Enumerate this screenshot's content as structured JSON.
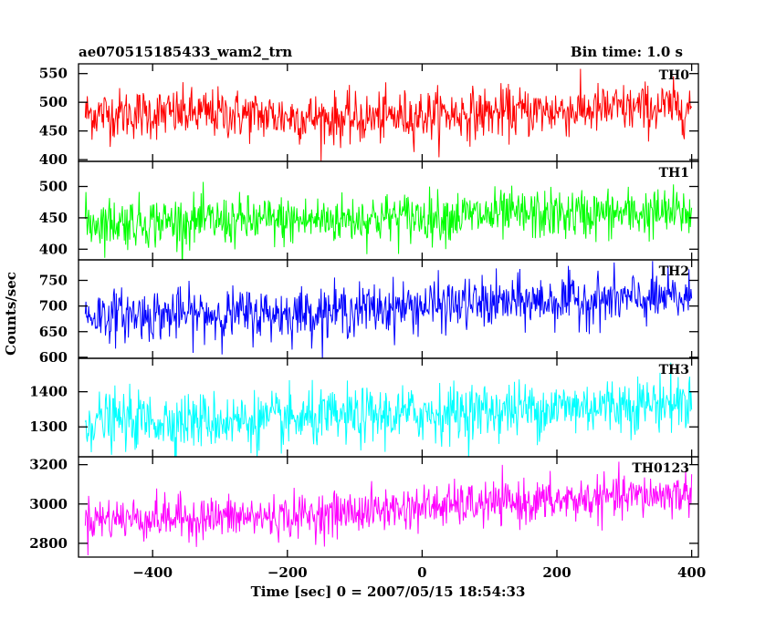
{
  "header": {
    "left": "ae070515185433_wam2_trn",
    "right": "Bin time: 1.0 s"
  },
  "chart_data": {
    "type": "line",
    "xlabel": "Time [sec] 0 = 2007/05/15 18:54:33",
    "ylabel": "Counts/sec",
    "xlim": [
      -510,
      410
    ],
    "x_ticks": [
      -400,
      -200,
      0,
      200,
      400
    ],
    "x_tick_labels": [
      "−400",
      "−200",
      "0",
      "200",
      "400"
    ],
    "grid": false,
    "x_start": -500,
    "x_end": 400,
    "bin_time": 1.0,
    "panels": [
      {
        "label": "TH0",
        "color": "#ff0000",
        "ylim": [
          397,
          567
        ],
        "y_ticks": [
          400,
          450,
          500,
          550
        ],
        "trend": [
          [
            -500,
            480
          ],
          [
            -300,
            480
          ],
          [
            -100,
            470
          ],
          [
            0,
            478
          ],
          [
            200,
            485
          ],
          [
            400,
            492
          ]
        ],
        "noise": 22
      },
      {
        "label": "TH1",
        "color": "#00ff00",
        "ylim": [
          383,
          540
        ],
        "y_ticks": [
          400,
          450,
          500
        ],
        "trend": [
          [
            -500,
            443
          ],
          [
            -200,
            445
          ],
          [
            0,
            452
          ],
          [
            200,
            455
          ],
          [
            400,
            458
          ]
        ],
        "noise": 20
      },
      {
        "label": "TH2",
        "color": "#0000ff",
        "ylim": [
          598,
          790
        ],
        "y_ticks": [
          600,
          650,
          700,
          750
        ],
        "trend": [
          [
            -500,
            682
          ],
          [
            -200,
            685
          ],
          [
            0,
            700
          ],
          [
            200,
            710
          ],
          [
            400,
            715
          ]
        ],
        "noise": 25
      },
      {
        "label": "TH3",
        "color": "#00ffff",
        "ylim": [
          1215,
          1495
        ],
        "y_ticks": [
          1300,
          1400
        ],
        "trend": [
          [
            -500,
            1318
          ],
          [
            -200,
            1318
          ],
          [
            0,
            1338
          ],
          [
            200,
            1355
          ],
          [
            400,
            1372
          ]
        ],
        "noise": 40
      },
      {
        "label": "TH0123",
        "color": "#ff00ff",
        "ylim": [
          2730,
          3240
        ],
        "y_ticks": [
          2800,
          3000,
          3200
        ],
        "trend": [
          [
            -500,
            2925
          ],
          [
            -200,
            2935
          ],
          [
            0,
            2985
          ],
          [
            200,
            3015
          ],
          [
            400,
            3055
          ]
        ],
        "noise": 55
      }
    ]
  }
}
